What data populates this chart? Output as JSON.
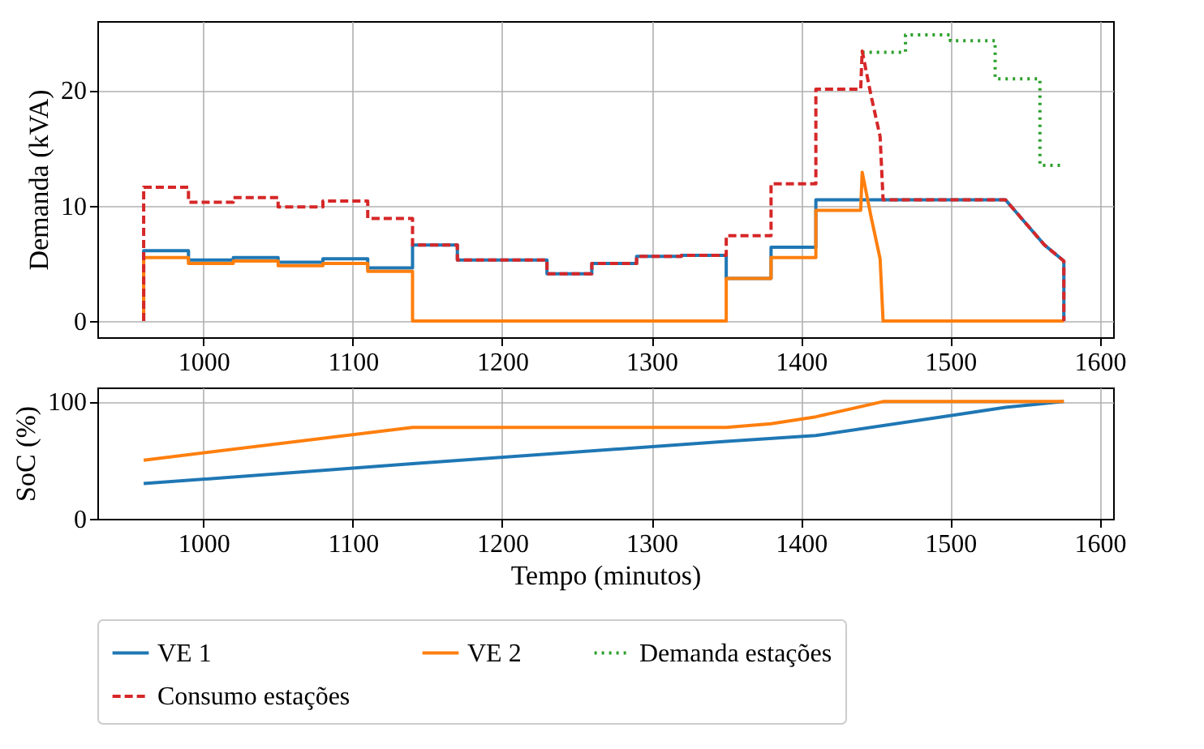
{
  "chart_data": [
    {
      "type": "line",
      "ylabel": "Demanda (kVA)",
      "xlim": [
        929,
        1609
      ],
      "xticks": [
        1000,
        1100,
        1200,
        1300,
        1400,
        1500,
        1600
      ],
      "ylim": [
        -1.4,
        26
      ],
      "yticks": [
        0,
        10,
        20
      ],
      "grid": true,
      "legend": "bottom",
      "series": [
        {
          "name": "VE 1",
          "color": "#1f77b4",
          "line_style": "solid",
          "x": [
            960,
            960,
            990,
            990,
            1020,
            1020,
            1050,
            1050,
            1080,
            1080,
            1110,
            1110,
            1140,
            1140,
            1170,
            1170,
            1230,
            1230,
            1260,
            1260,
            1290,
            1290,
            1320,
            1320,
            1350,
            1350,
            1380,
            1380,
            1410,
            1410,
            1537,
            1549,
            1563,
            1576,
            1576
          ],
          "values": [
            0,
            6.1,
            6.1,
            5.3,
            5.3,
            5.5,
            5.5,
            5.1,
            5.1,
            5.4,
            5.4,
            4.6,
            4.6,
            6.6,
            6.6,
            5.3,
            5.3,
            4.1,
            4.1,
            5.0,
            5.0,
            5.6,
            5.6,
            5.7,
            5.7,
            3.7,
            3.7,
            6.4,
            6.4,
            10.5,
            10.5,
            8.7,
            6.6,
            5.2,
            0
          ]
        },
        {
          "name": "VE 2",
          "color": "#ff7f0e",
          "line_style": "solid",
          "x": [
            960,
            960,
            990,
            990,
            1020,
            1020,
            1050,
            1050,
            1080,
            1080,
            1110,
            1110,
            1140,
            1140,
            1350,
            1350,
            1380,
            1380,
            1410,
            1410,
            1440,
            1441,
            1447,
            1453,
            1455,
            1576
          ],
          "values": [
            0,
            5.5,
            5.5,
            5.0,
            5.0,
            5.2,
            5.2,
            4.8,
            4.8,
            5.0,
            5.0,
            4.3,
            4.3,
            0,
            0,
            3.7,
            3.7,
            5.5,
            5.5,
            9.6,
            9.6,
            12.9,
            9.0,
            5.4,
            0,
            0
          ]
        },
        {
          "name": "Demanda estações",
          "color": "#2ca02c",
          "line_style": "dotted",
          "x": [
            1441,
            1470,
            1470,
            1500,
            1500,
            1530,
            1530,
            1560,
            1560,
            1576
          ],
          "values": [
            23.3,
            23.3,
            24.8,
            24.8,
            24.3,
            24.3,
            21.0,
            21.0,
            13.5,
            13.5
          ]
        },
        {
          "name": "Consumo estações",
          "color": "#d62728",
          "line_style": "dashed",
          "x": [
            960,
            960,
            990,
            990,
            1020,
            1020,
            1050,
            1050,
            1080,
            1080,
            1110,
            1110,
            1140,
            1140,
            1170,
            1170,
            1230,
            1230,
            1260,
            1260,
            1290,
            1290,
            1320,
            1320,
            1350,
            1350,
            1380,
            1380,
            1410,
            1410,
            1440,
            1441,
            1447,
            1453,
            1455,
            1537,
            1549,
            1563,
            1576,
            1576
          ],
          "values": [
            0,
            11.6,
            11.6,
            10.3,
            10.3,
            10.7,
            10.7,
            9.9,
            9.9,
            10.4,
            10.4,
            8.9,
            8.9,
            6.6,
            6.6,
            5.3,
            5.3,
            4.1,
            4.1,
            5.0,
            5.0,
            5.6,
            5.6,
            5.7,
            5.7,
            7.4,
            7.4,
            11.9,
            11.9,
            20.1,
            20.1,
            23.4,
            19.5,
            16.0,
            10.5,
            10.5,
            8.7,
            6.6,
            5.2,
            0
          ]
        }
      ]
    },
    {
      "type": "line",
      "xlabel": "Tempo (minutos)",
      "ylabel": "SoC (%)",
      "xlim": [
        929,
        1609
      ],
      "xticks": [
        1000,
        1100,
        1200,
        1300,
        1400,
        1500,
        1600
      ],
      "ylim": [
        0,
        112
      ],
      "yticks": [
        0,
        100
      ],
      "grid": true,
      "legend": "bottom",
      "series": [
        {
          "name": "VE 1",
          "color": "#1f77b4",
          "line_style": "solid",
          "x": [
            960,
            1140,
            1350,
            1410,
            1500,
            1537,
            1576
          ],
          "values": [
            30,
            47,
            66,
            71,
            88,
            95,
            100
          ]
        },
        {
          "name": "VE 2",
          "color": "#ff7f0e",
          "line_style": "solid",
          "x": [
            960,
            1140,
            1350,
            1380,
            1410,
            1455,
            1576
          ],
          "values": [
            50,
            78,
            78,
            81,
            87,
            100,
            100
          ]
        }
      ]
    }
  ]
}
